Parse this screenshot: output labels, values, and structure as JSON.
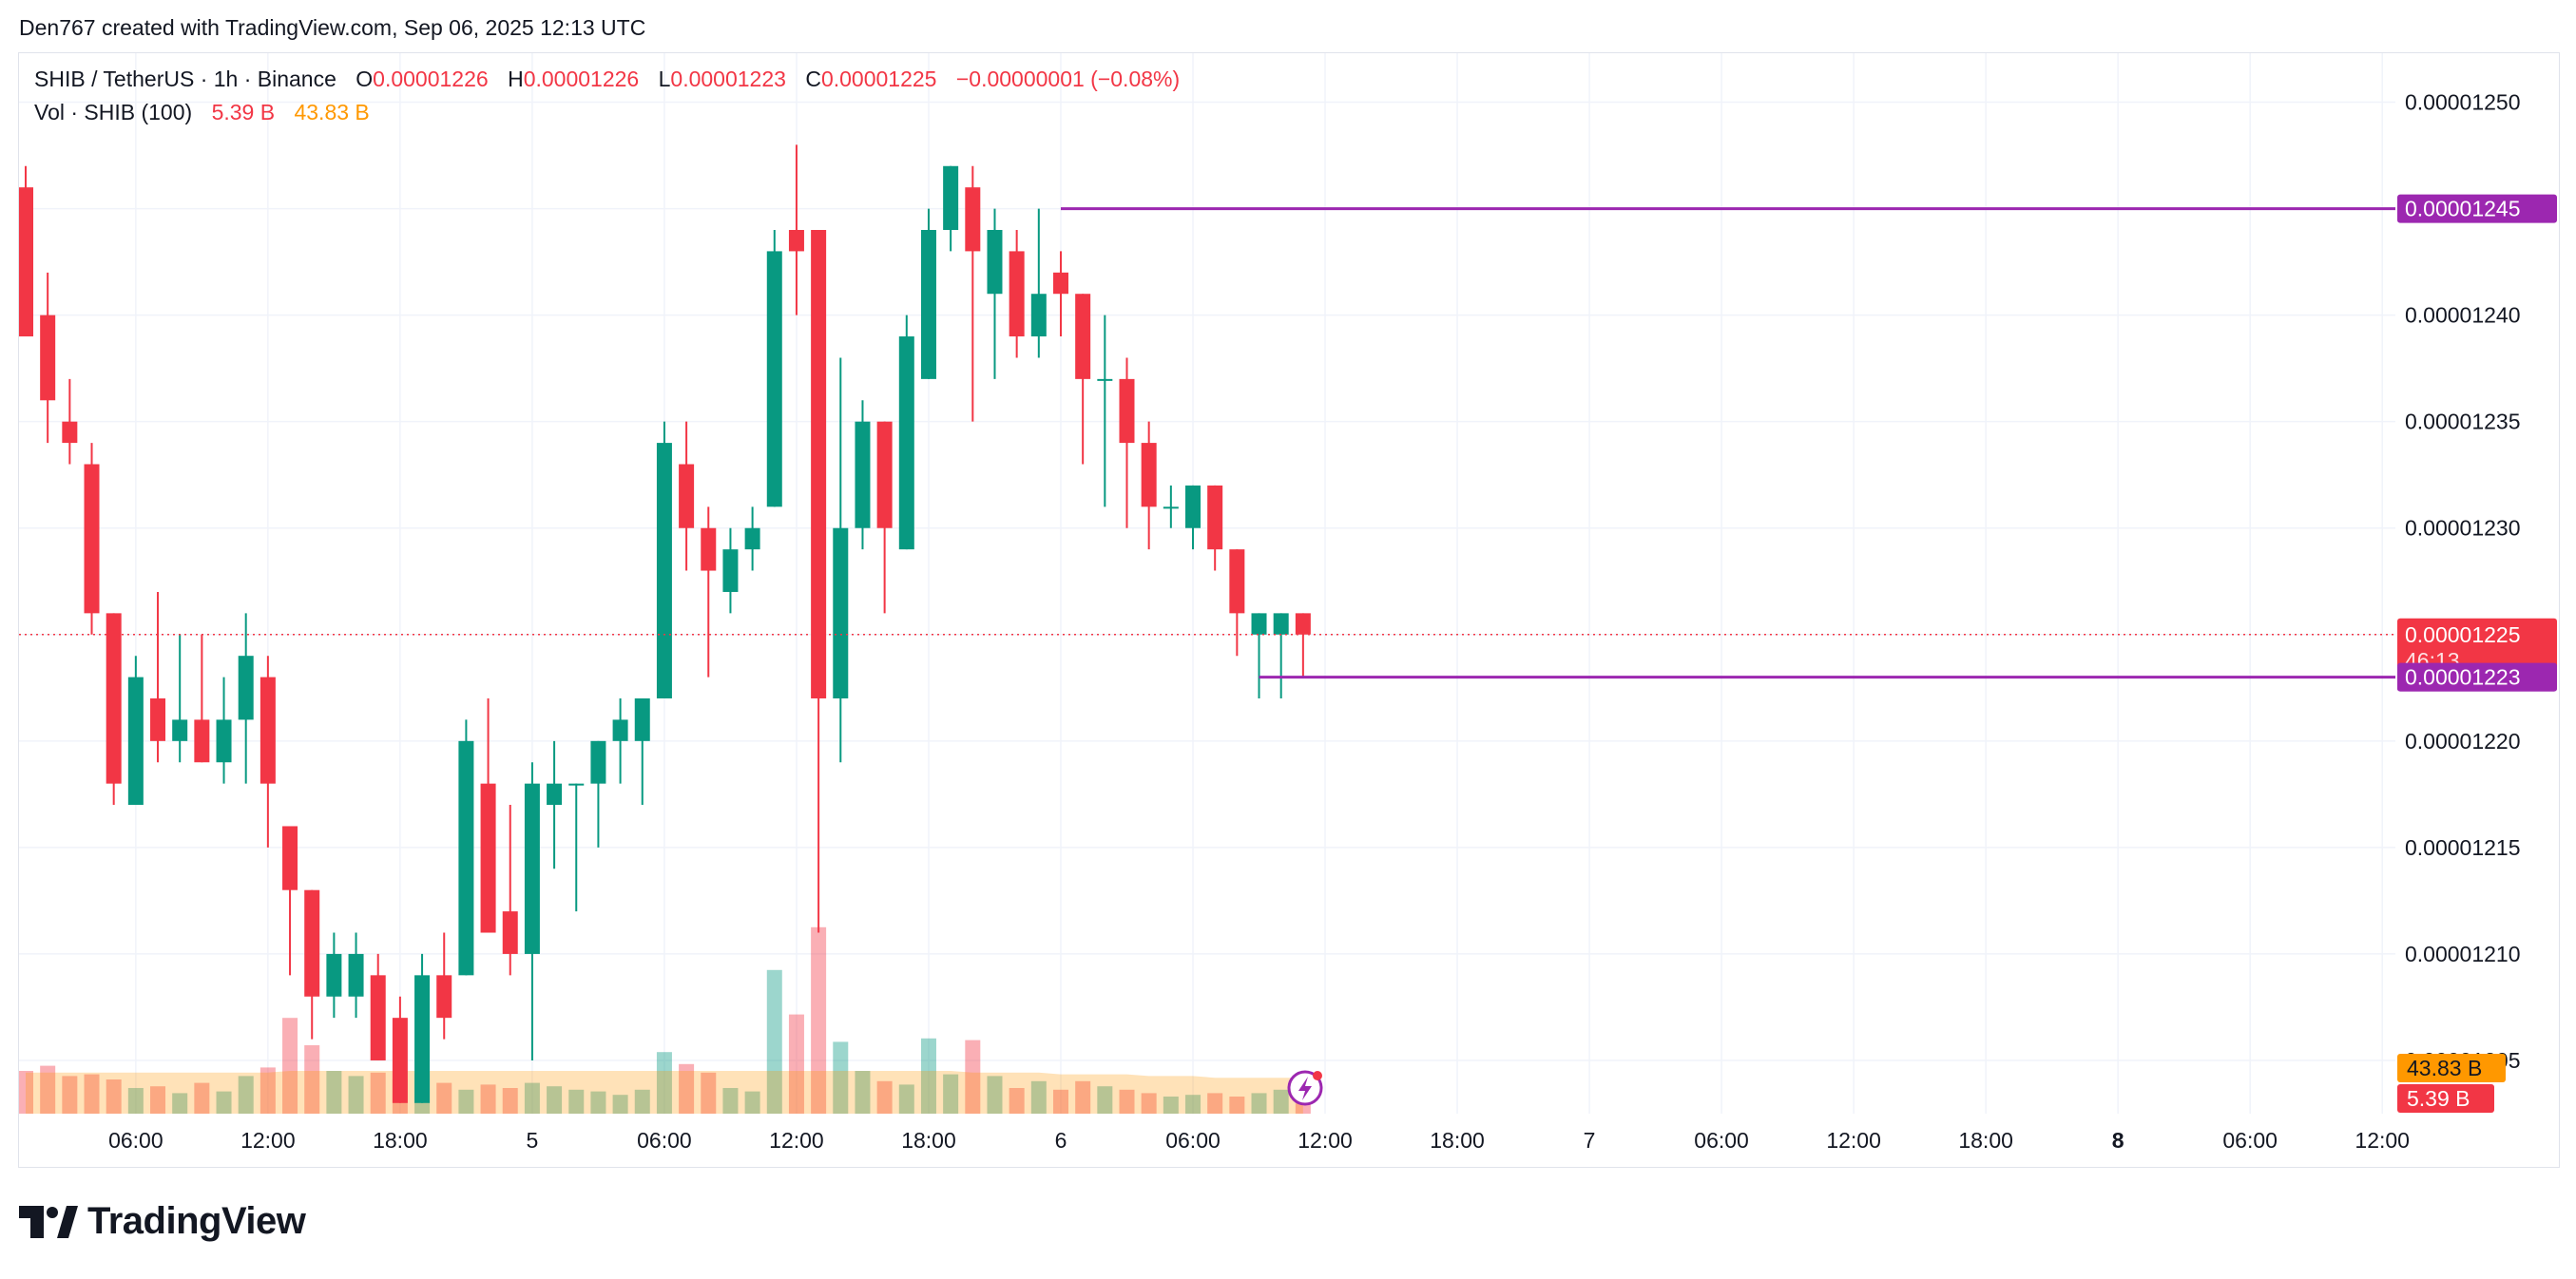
{
  "header": {
    "caption": "Den767 created with TradingView.com, Sep 06, 2025 12:13 UTC"
  },
  "legend": {
    "symbol": "SHIB / TetherUS · 1h · Binance",
    "o_label": "O",
    "o_value": "0.00001226",
    "h_label": "H",
    "h_value": "0.00001226",
    "l_label": "L",
    "l_value": "0.00001223",
    "c_label": "C",
    "c_value": "0.00001225",
    "change": "−0.00000001 (−0.08%)",
    "vol_label": "Vol · SHIB (100)",
    "vol_value": "5.39 B",
    "vol_ma_value": "43.83 B"
  },
  "footer": {
    "logo_text": "TradingView"
  },
  "colors": {
    "up": "#089981",
    "down": "#f23645",
    "line": "#9c27b0",
    "vol_ma": "#ff9800"
  },
  "chart_data": {
    "type": "candlestick",
    "interval": "1h",
    "y_ticks": [
      "0.00001250",
      "0.00001245",
      "0.00001240",
      "0.00001235",
      "0.00001230",
      "0.00001225",
      "0.00001220",
      "0.00001215",
      "0.00001210",
      "0.00001205"
    ],
    "y_range": [
      1.2025e-05,
      1.2523e-05
    ],
    "x_ticks": [
      {
        "label": "06:00",
        "i": 5,
        "bold": false
      },
      {
        "label": "12:00",
        "i": 11,
        "bold": false
      },
      {
        "label": "18:00",
        "i": 17,
        "bold": false
      },
      {
        "label": "5",
        "i": 23,
        "bold": false
      },
      {
        "label": "06:00",
        "i": 29,
        "bold": false
      },
      {
        "label": "12:00",
        "i": 35,
        "bold": false
      },
      {
        "label": "18:00",
        "i": 41,
        "bold": false
      },
      {
        "label": "6",
        "i": 47,
        "bold": false
      },
      {
        "label": "06:00",
        "i": 53,
        "bold": false
      },
      {
        "label": "12:00",
        "i": 59,
        "bold": false
      },
      {
        "label": "18:00",
        "i": 65,
        "bold": false
      },
      {
        "label": "7",
        "i": 71,
        "bold": false
      },
      {
        "label": "06:00",
        "i": 77,
        "bold": false
      },
      {
        "label": "12:00",
        "i": 83,
        "bold": false
      },
      {
        "label": "18:00",
        "i": 89,
        "bold": false
      },
      {
        "label": "8",
        "i": 95,
        "bold": true
      },
      {
        "label": "06:00",
        "i": 101,
        "bold": false
      },
      {
        "label": "12:00",
        "i": 107,
        "bold": false
      }
    ],
    "candles": [
      {
        "o": 1.246e-05,
        "h": 1.247e-05,
        "l": 1.239e-05,
        "c": 1.239e-05,
        "v": 2.5
      },
      {
        "o": 1.24e-05,
        "h": 1.242e-05,
        "l": 1.234e-05,
        "c": 1.236e-05,
        "v": 2.8
      },
      {
        "o": 1.235e-05,
        "h": 1.237e-05,
        "l": 1.233e-05,
        "c": 1.234e-05,
        "v": 2.2
      },
      {
        "o": 1.233e-05,
        "h": 1.234e-05,
        "l": 1.225e-05,
        "c": 1.226e-05,
        "v": 2.3
      },
      {
        "o": 1.226e-05,
        "h": 1.226e-05,
        "l": 1.217e-05,
        "c": 1.218e-05,
        "v": 2.0
      },
      {
        "o": 1.217e-05,
        "h": 1.224e-05,
        "l": 1.217e-05,
        "c": 1.223e-05,
        "v": 1.5
      },
      {
        "o": 1.222e-05,
        "h": 1.227e-05,
        "l": 1.219e-05,
        "c": 1.22e-05,
        "v": 1.6
      },
      {
        "o": 1.22e-05,
        "h": 1.225e-05,
        "l": 1.219e-05,
        "c": 1.221e-05,
        "v": 1.2
      },
      {
        "o": 1.221e-05,
        "h": 1.225e-05,
        "l": 1.219e-05,
        "c": 1.219e-05,
        "v": 1.8
      },
      {
        "o": 1.219e-05,
        "h": 1.223e-05,
        "l": 1.218e-05,
        "c": 1.221e-05,
        "v": 1.3
      },
      {
        "o": 1.221e-05,
        "h": 1.226e-05,
        "l": 1.218e-05,
        "c": 1.224e-05,
        "v": 2.2
      },
      {
        "o": 1.223e-05,
        "h": 1.224e-05,
        "l": 1.215e-05,
        "c": 1.218e-05,
        "v": 2.7
      },
      {
        "o": 1.216e-05,
        "h": 1.216e-05,
        "l": 1.209e-05,
        "c": 1.213e-05,
        "v": 5.6
      },
      {
        "o": 1.213e-05,
        "h": 1.213e-05,
        "l": 1.206e-05,
        "c": 1.208e-05,
        "v": 4.0
      },
      {
        "o": 1.208e-05,
        "h": 1.211e-05,
        "l": 1.207e-05,
        "c": 1.21e-05,
        "v": 2.5
      },
      {
        "o": 1.208e-05,
        "h": 1.211e-05,
        "l": 1.207e-05,
        "c": 1.21e-05,
        "v": 2.2
      },
      {
        "o": 1.209e-05,
        "h": 1.21e-05,
        "l": 1.205e-05,
        "c": 1.205e-05,
        "v": 2.4
      },
      {
        "o": 1.207e-05,
        "h": 1.208e-05,
        "l": 1.203e-05,
        "c": 1.203e-05,
        "v": 2.0
      },
      {
        "o": 1.203e-05,
        "h": 1.21e-05,
        "l": 1.203e-05,
        "c": 1.209e-05,
        "v": 2.3
      },
      {
        "o": 1.209e-05,
        "h": 1.211e-05,
        "l": 1.206e-05,
        "c": 1.207e-05,
        "v": 1.8
      },
      {
        "o": 1.209e-05,
        "h": 1.221e-05,
        "l": 1.209e-05,
        "c": 1.22e-05,
        "v": 1.4
      },
      {
        "o": 1.218e-05,
        "h": 1.222e-05,
        "l": 1.211e-05,
        "c": 1.211e-05,
        "v": 1.7
      },
      {
        "o": 1.212e-05,
        "h": 1.217e-05,
        "l": 1.209e-05,
        "c": 1.21e-05,
        "v": 1.5
      },
      {
        "o": 1.21e-05,
        "h": 1.219e-05,
        "l": 1.205e-05,
        "c": 1.218e-05,
        "v": 1.8
      },
      {
        "o": 1.217e-05,
        "h": 1.22e-05,
        "l": 1.214e-05,
        "c": 1.218e-05,
        "v": 1.6
      },
      {
        "o": 1.218e-05,
        "h": 1.218e-05,
        "l": 1.212e-05,
        "c": 1.218e-05,
        "v": 1.4
      },
      {
        "o": 1.218e-05,
        "h": 1.22e-05,
        "l": 1.215e-05,
        "c": 1.22e-05,
        "v": 1.3
      },
      {
        "o": 1.22e-05,
        "h": 1.222e-05,
        "l": 1.218e-05,
        "c": 1.221e-05,
        "v": 1.1
      },
      {
        "o": 1.22e-05,
        "h": 1.222e-05,
        "l": 1.217e-05,
        "c": 1.222e-05,
        "v": 1.4
      },
      {
        "o": 1.222e-05,
        "h": 1.235e-05,
        "l": 1.222e-05,
        "c": 1.234e-05,
        "v": 3.6
      },
      {
        "o": 1.233e-05,
        "h": 1.235e-05,
        "l": 1.228e-05,
        "c": 1.23e-05,
        "v": 2.9
      },
      {
        "o": 1.23e-05,
        "h": 1.231e-05,
        "l": 1.223e-05,
        "c": 1.228e-05,
        "v": 2.4
      },
      {
        "o": 1.227e-05,
        "h": 1.23e-05,
        "l": 1.226e-05,
        "c": 1.229e-05,
        "v": 1.5
      },
      {
        "o": 1.229e-05,
        "h": 1.231e-05,
        "l": 1.228e-05,
        "c": 1.23e-05,
        "v": 1.3
      },
      {
        "o": 1.231e-05,
        "h": 1.244e-05,
        "l": 1.231e-05,
        "c": 1.243e-05,
        "v": 8.4
      },
      {
        "o": 1.244e-05,
        "h": 1.248e-05,
        "l": 1.24e-05,
        "c": 1.243e-05,
        "v": 5.8
      },
      {
        "o": 1.244e-05,
        "h": 1.244e-05,
        "l": 1.211e-05,
        "c": 1.222e-05,
        "v": 10.9
      },
      {
        "o": 1.222e-05,
        "h": 1.238e-05,
        "l": 1.219e-05,
        "c": 1.23e-05,
        "v": 4.2
      },
      {
        "o": 1.23e-05,
        "h": 1.236e-05,
        "l": 1.229e-05,
        "c": 1.235e-05,
        "v": 2.5
      },
      {
        "o": 1.235e-05,
        "h": 1.235e-05,
        "l": 1.226e-05,
        "c": 1.23e-05,
        "v": 1.9
      },
      {
        "o": 1.229e-05,
        "h": 1.24e-05,
        "l": 1.229e-05,
        "c": 1.239e-05,
        "v": 1.7
      },
      {
        "o": 1.237e-05,
        "h": 1.245e-05,
        "l": 1.237e-05,
        "c": 1.244e-05,
        "v": 4.4
      },
      {
        "o": 1.244e-05,
        "h": 1.247e-05,
        "l": 1.243e-05,
        "c": 1.247e-05,
        "v": 2.3
      },
      {
        "o": 1.246e-05,
        "h": 1.247e-05,
        "l": 1.235e-05,
        "c": 1.243e-05,
        "v": 4.3
      },
      {
        "o": 1.241e-05,
        "h": 1.245e-05,
        "l": 1.237e-05,
        "c": 1.244e-05,
        "v": 2.2
      },
      {
        "o": 1.243e-05,
        "h": 1.244e-05,
        "l": 1.238e-05,
        "c": 1.239e-05,
        "v": 1.5
      },
      {
        "o": 1.239e-05,
        "h": 1.245e-05,
        "l": 1.238e-05,
        "c": 1.241e-05,
        "v": 1.9
      },
      {
        "o": 1.242e-05,
        "h": 1.243e-05,
        "l": 1.239e-05,
        "c": 1.241e-05,
        "v": 1.4
      },
      {
        "o": 1.241e-05,
        "h": 1.241e-05,
        "l": 1.233e-05,
        "c": 1.237e-05,
        "v": 1.9
      },
      {
        "o": 1.237e-05,
        "h": 1.24e-05,
        "l": 1.231e-05,
        "c": 1.237e-05,
        "v": 1.6
      },
      {
        "o": 1.237e-05,
        "h": 1.238e-05,
        "l": 1.23e-05,
        "c": 1.234e-05,
        "v": 1.4
      },
      {
        "o": 1.234e-05,
        "h": 1.235e-05,
        "l": 1.229e-05,
        "c": 1.231e-05,
        "v": 1.2
      },
      {
        "o": 1.231e-05,
        "h": 1.232e-05,
        "l": 1.23e-05,
        "c": 1.231e-05,
        "v": 1.0
      },
      {
        "o": 1.23e-05,
        "h": 1.232e-05,
        "l": 1.229e-05,
        "c": 1.232e-05,
        "v": 1.1
      },
      {
        "o": 1.232e-05,
        "h": 1.232e-05,
        "l": 1.228e-05,
        "c": 1.229e-05,
        "v": 1.2
      },
      {
        "o": 1.229e-05,
        "h": 1.229e-05,
        "l": 1.224e-05,
        "c": 1.226e-05,
        "v": 1.0
      },
      {
        "o": 1.225e-05,
        "h": 1.226e-05,
        "l": 1.222e-05,
        "c": 1.226e-05,
        "v": 1.2
      },
      {
        "o": 1.225e-05,
        "h": 1.226e-05,
        "l": 1.222e-05,
        "c": 1.226e-05,
        "v": 1.4
      },
      {
        "o": 1.226e-05,
        "h": 1.226e-05,
        "l": 1.223e-05,
        "c": 1.225e-05,
        "v": 0.6
      }
    ],
    "volume_ma": [
      2.4,
      2.4,
      2.4,
      2.4,
      2.4,
      2.4,
      2.4,
      2.4,
      2.4,
      2.4,
      2.4,
      2.4,
      2.5,
      2.5,
      2.5,
      2.5,
      2.5,
      2.5,
      2.5,
      2.5,
      2.5,
      2.5,
      2.5,
      2.5,
      2.5,
      2.5,
      2.5,
      2.5,
      2.5,
      2.5,
      2.5,
      2.5,
      2.5,
      2.5,
      2.5,
      2.5,
      2.5,
      2.5,
      2.5,
      2.5,
      2.5,
      2.5,
      2.5,
      2.4,
      2.4,
      2.4,
      2.4,
      2.3,
      2.3,
      2.3,
      2.3,
      2.2,
      2.2,
      2.2,
      2.1,
      2.1,
      2.1,
      2.1,
      2.1
    ],
    "horizontal_lines": [
      {
        "price": 1.245e-05,
        "label": "0.00001245",
        "from": 47
      },
      {
        "price": 1.223e-05,
        "label": "0.00001223",
        "from": 56
      }
    ],
    "last_price": {
      "price": 1.225e-05,
      "label": "0.00001225",
      "countdown": "46:13"
    },
    "volume_labels": {
      "ma": "43.83 B",
      "vol": "5.39 B"
    }
  }
}
